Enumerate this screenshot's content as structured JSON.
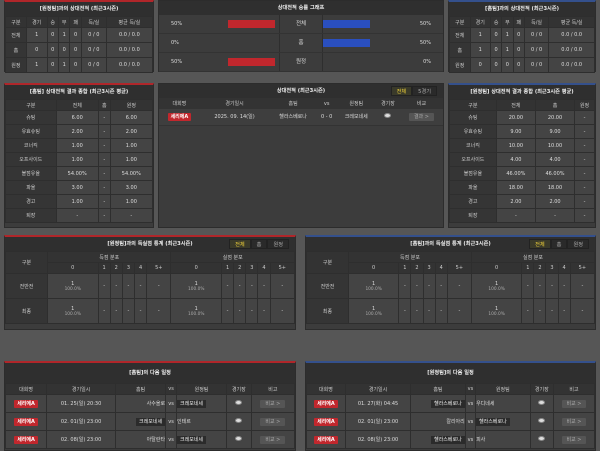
{
  "colors": {
    "home": "#c1272d",
    "away": "#2a4fbf",
    "tab_active": "#f1d23a"
  },
  "h2h_cols": [
    "구분",
    "경기",
    "승",
    "무",
    "패",
    "득/실",
    "평균 득/실"
  ],
  "h2h_left": {
    "title": "[원정팀]과의 상대전적 (최근3시즌)",
    "rows": [
      [
        "전체",
        "1",
        "0",
        "1",
        "0",
        "0 / 0",
        "0.0 / 0.0"
      ],
      [
        "홈",
        "0",
        "0",
        "0",
        "0",
        "0 / 0",
        "0.0 / 0.0"
      ],
      [
        "원정",
        "1",
        "0",
        "1",
        "0",
        "0 / 0",
        "0.0 / 0.0"
      ]
    ]
  },
  "h2h_right": {
    "title": "[홈팀]과의 상대전적 (최근3시즌)",
    "rows": [
      [
        "전체",
        "1",
        "0",
        "1",
        "0",
        "0 / 0",
        "0.0 / 0.0"
      ],
      [
        "홈",
        "1",
        "0",
        "1",
        "0",
        "0 / 0",
        "0.0 / 0.0"
      ],
      [
        "원정",
        "0",
        "0",
        "0",
        "0",
        "0 / 0",
        "0.0 / 0.0"
      ]
    ]
  },
  "graph": {
    "title": "상대전적 승률 그래프",
    "rows": [
      {
        "label": "전체",
        "left": "50%",
        "left_val": 50,
        "right": "50%",
        "right_val": 50
      },
      {
        "label": "홈",
        "left": "0%",
        "left_val": 0,
        "right": "50%",
        "right_val": 50
      },
      {
        "label": "원정",
        "left": "50%",
        "left_val": 50,
        "right": "0%",
        "right_val": 0
      }
    ]
  },
  "stats_cols": [
    "구분",
    "전체",
    "홈",
    "원정"
  ],
  "stats_left": {
    "title": "[홈팀] 상대전적 결과 종합 (최근3시즌 평균)",
    "rows": [
      [
        "슈팅",
        "6.00",
        "-",
        "6.00"
      ],
      [
        "유효슈팅",
        "2.00",
        "-",
        "2.00"
      ],
      [
        "코너킥",
        "1.00",
        "-",
        "1.00"
      ],
      [
        "오프사이드",
        "1.00",
        "-",
        "1.00"
      ],
      [
        "볼점유율",
        "54.00%",
        "-",
        "54.00%"
      ],
      [
        "파울",
        "3.00",
        "-",
        "3.00"
      ],
      [
        "경고",
        "1.00",
        "-",
        "1.00"
      ],
      [
        "퇴장",
        "-",
        "-",
        "-"
      ]
    ]
  },
  "stats_right": {
    "title": "[원정팀] 상대전적 결과 종합 (최근3시즌 평균)",
    "rows": [
      [
        "슈팅",
        "20.00",
        "20.00",
        "-"
      ],
      [
        "유효슈팅",
        "9.00",
        "9.00",
        "-"
      ],
      [
        "코너킥",
        "10.00",
        "10.00",
        "-"
      ],
      [
        "오프사이드",
        "4.00",
        "4.00",
        "-"
      ],
      [
        "볼점유율",
        "46.00%",
        "46.00%",
        "-"
      ],
      [
        "파울",
        "18.00",
        "18.00",
        "-"
      ],
      [
        "경고",
        "2.00",
        "2.00",
        "-"
      ],
      [
        "퇴장",
        "-",
        "-",
        "-"
      ]
    ]
  },
  "recent": {
    "title": "상대전적 (최근3시즌)",
    "tabs": [
      "전체",
      "5경기"
    ],
    "cols": [
      "대회명",
      "경기일시",
      "홈팀",
      "vs",
      "원정팀",
      "경기장",
      "비교"
    ],
    "matches": [
      {
        "league": "세리에A",
        "date": "2025. 09. 14(일)",
        "home": "헬라스베로나",
        "score": "0 - 0",
        "away": "크레모네세",
        "btn": "결과 >"
      }
    ]
  },
  "goals_left": {
    "title": "[원정팀]과의 득실점 통계 (최근3시즌)",
    "tabs": [
      "전체",
      "홈",
      "원정"
    ]
  },
  "goals_right": {
    "title": "[홈팀]과의 득실점 통계 (최근3시즌)",
    "tabs": [
      "전체",
      "홈",
      "원정"
    ]
  },
  "goals": {
    "label": "구분",
    "scored": "득점 분포",
    "conceded": "실점 분포",
    "buckets": [
      "0",
      "1",
      "2",
      "3",
      "4",
      "5+"
    ],
    "rows": [
      {
        "label": "전반전",
        "first": "1",
        "first_pct": "100.0%"
      },
      {
        "label": "최종",
        "first": "1",
        "first_pct": "100.0%"
      }
    ],
    "dash": "-"
  },
  "sched_cols": [
    "대회명",
    "경기일시",
    "홈팀",
    "vs",
    "원정팀",
    "경기장",
    "비고"
  ],
  "sched_left": {
    "title": "[홈팀]의 다음 일정",
    "rows": [
      {
        "league": "세리에A",
        "date": "01. 25(일) 20:30",
        "home": "사수올로",
        "away": "크레모네세",
        "hl": "away",
        "btn": "비교 >"
      },
      {
        "league": "세리에A",
        "date": "02. 01(일) 23:00",
        "home": "크레모네세",
        "away": "인테르",
        "hl": "home",
        "btn": "비교 >"
      },
      {
        "league": "세리에A",
        "date": "02. 08(일) 23:00",
        "home": "아탈란타",
        "away": "크레모네세",
        "hl": "away",
        "btn": "비교 >"
      }
    ]
  },
  "sched_right": {
    "title": "[원정팀]의 다음 일정",
    "rows": [
      {
        "league": "세리에A",
        "date": "01. 27(화) 04:45",
        "home": "헬라스베로나",
        "away": "우디네세",
        "hl": "home",
        "btn": "비교 >"
      },
      {
        "league": "세리에A",
        "date": "02. 01(일) 23:00",
        "home": "칼리아리",
        "away": "헬라스베로나",
        "hl": "away",
        "btn": "비교 >"
      },
      {
        "league": "세리에A",
        "date": "02. 08(일) 23:00",
        "home": "헬라스베로나",
        "away": "피사",
        "hl": "home",
        "btn": "비교 >"
      }
    ]
  }
}
